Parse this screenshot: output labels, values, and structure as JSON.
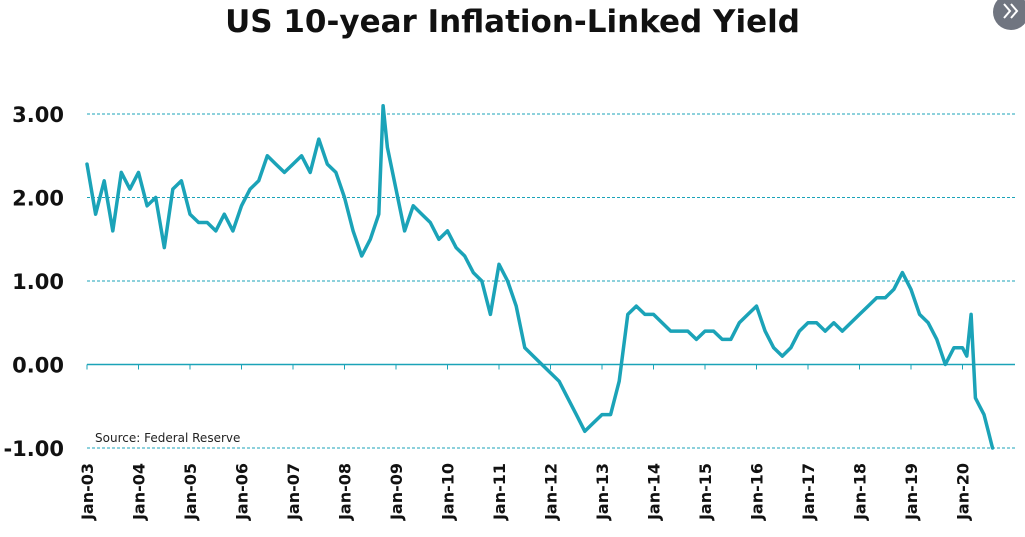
{
  "page": {
    "next_button_icon": "double-chevron-right-icon"
  },
  "colors": {
    "series": "#1ba3b8",
    "grid": "#1ba3b8",
    "text": "#111111",
    "nav_button": "#707580"
  },
  "chart_data": {
    "type": "line",
    "title": "US 10-year Inflation-Linked Yield",
    "xlabel": "",
    "ylabel": "",
    "source": "Source: Federal Reserve",
    "x_tick_labels": [
      "Jan-03",
      "Jan-04",
      "Jan-05",
      "Jan-06",
      "Jan-07",
      "Jan-08",
      "Jan-09",
      "Jan-10",
      "Jan-11",
      "Jan-12",
      "Jan-13",
      "Jan-14",
      "Jan-15",
      "Jan-16",
      "Jan-17",
      "Jan-18",
      "Jan-19",
      "Jan-20"
    ],
    "y_tick_labels": [
      "-1.00",
      "0.00",
      "1.00",
      "2.00",
      "3.00"
    ],
    "ylim": [
      -1.0,
      3.0
    ],
    "xlim": [
      "2003-01",
      "2020-08"
    ],
    "grid": "horizontal dashed at 1.00, 2.00, 3.00 and -1.00; solid line at 0.00",
    "legend": "none",
    "series": [
      {
        "x": [
          "2003-01",
          "2003-03",
          "2003-05",
          "2003-07",
          "2003-09",
          "2003-11",
          "2004-01",
          "2004-03",
          "2004-05",
          "2004-07",
          "2004-09",
          "2004-11",
          "2005-01",
          "2005-03",
          "2005-05",
          "2005-07",
          "2005-09",
          "2005-11",
          "2006-01",
          "2006-03",
          "2006-05",
          "2006-07",
          "2006-09",
          "2006-11",
          "2007-01",
          "2007-03",
          "2007-05",
          "2007-07",
          "2007-09",
          "2007-11",
          "2008-01",
          "2008-03",
          "2008-05",
          "2008-07",
          "2008-09",
          "2008-10",
          "2008-11",
          "2009-01",
          "2009-03",
          "2009-05",
          "2009-07",
          "2009-09",
          "2009-11",
          "2010-01",
          "2010-03",
          "2010-05",
          "2010-07",
          "2010-09",
          "2010-11",
          "2011-01",
          "2011-03",
          "2011-05",
          "2011-07",
          "2011-09",
          "2011-11",
          "2012-01",
          "2012-03",
          "2012-05",
          "2012-07",
          "2012-09",
          "2012-11",
          "2013-01",
          "2013-03",
          "2013-05",
          "2013-07",
          "2013-09",
          "2013-11",
          "2014-01",
          "2014-03",
          "2014-05",
          "2014-07",
          "2014-09",
          "2014-11",
          "2015-01",
          "2015-03",
          "2015-05",
          "2015-07",
          "2015-09",
          "2015-11",
          "2016-01",
          "2016-03",
          "2016-05",
          "2016-07",
          "2016-09",
          "2016-11",
          "2017-01",
          "2017-03",
          "2017-05",
          "2017-07",
          "2017-09",
          "2017-11",
          "2018-01",
          "2018-03",
          "2018-05",
          "2018-07",
          "2018-09",
          "2018-11",
          "2019-01",
          "2019-03",
          "2019-05",
          "2019-07",
          "2019-09",
          "2019-11",
          "2020-01",
          "2020-02",
          "2020-03",
          "2020-04",
          "2020-05",
          "2020-06",
          "2020-07",
          "2020-08"
        ],
        "y": [
          2.4,
          1.8,
          2.2,
          1.6,
          2.3,
          2.1,
          2.3,
          1.9,
          2.0,
          1.4,
          2.1,
          2.2,
          1.8,
          1.7,
          1.7,
          1.6,
          1.8,
          1.6,
          1.9,
          2.1,
          2.2,
          2.5,
          2.4,
          2.3,
          2.4,
          2.5,
          2.3,
          2.7,
          2.4,
          2.3,
          2.0,
          1.6,
          1.3,
          1.5,
          1.8,
          3.1,
          2.6,
          2.1,
          1.6,
          1.9,
          1.8,
          1.7,
          1.5,
          1.6,
          1.4,
          1.3,
          1.1,
          1.0,
          0.6,
          1.2,
          1.0,
          0.7,
          0.2,
          0.1,
          0.0,
          -0.1,
          -0.2,
          -0.4,
          -0.6,
          -0.8,
          -0.7,
          -0.6,
          -0.6,
          -0.2,
          0.6,
          0.7,
          0.6,
          0.6,
          0.5,
          0.4,
          0.4,
          0.4,
          0.3,
          0.4,
          0.4,
          0.3,
          0.3,
          0.5,
          0.6,
          0.7,
          0.4,
          0.2,
          0.1,
          0.2,
          0.4,
          0.5,
          0.5,
          0.4,
          0.5,
          0.4,
          0.5,
          0.6,
          0.7,
          0.8,
          0.8,
          0.9,
          1.1,
          0.9,
          0.6,
          0.5,
          0.3,
          0.0,
          0.2,
          0.2,
          0.1,
          0.6,
          -0.4,
          -0.5,
          -0.6,
          -0.8,
          -1.0
        ],
        "step_months": 1
      }
    ]
  }
}
